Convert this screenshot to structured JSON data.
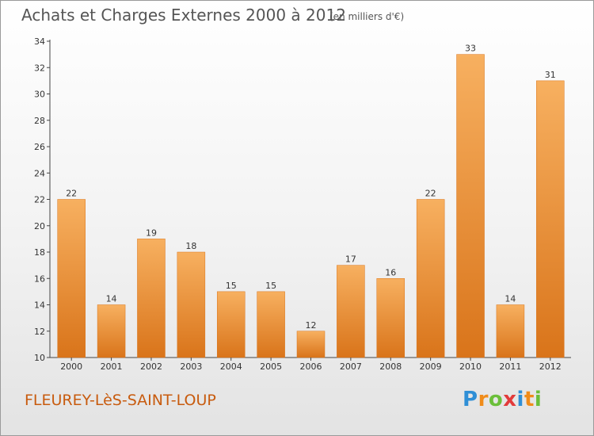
{
  "title": "Achats et Charges Externes 2000 à 2012",
  "subtitle": "(en milliers d'€)",
  "commune": "FLEUREY-LèS-SAINT-LOUP",
  "brand": {
    "letters": [
      "P",
      "r",
      "o",
      "x",
      "i",
      "t",
      "i"
    ],
    "colors": [
      "#2f8fd6",
      "#f08c1a",
      "#6bbf3a",
      "#e23b3b",
      "#2f8fd6",
      "#f08c1a",
      "#6bbf3a"
    ]
  },
  "colors": {
    "bar": "#f0932e",
    "bar_light": "#f7b060",
    "bar_dark": "#d9741a",
    "axis": "#444444",
    "grid": "#d0d0d0"
  },
  "chart_data": {
    "type": "bar",
    "categories": [
      "2000",
      "2001",
      "2002",
      "2003",
      "2004",
      "2005",
      "2006",
      "2007",
      "2008",
      "2009",
      "2010",
      "2011",
      "2012"
    ],
    "values": [
      22,
      14,
      19,
      18,
      15,
      15,
      12,
      17,
      16,
      22,
      33,
      14,
      31
    ],
    "title": "Achats et Charges Externes 2000 à 2012",
    "xlabel": "",
    "ylabel": "",
    "ylim": [
      10,
      34
    ],
    "yticks": [
      10,
      12,
      14,
      16,
      18,
      20,
      22,
      24,
      26,
      28,
      30,
      32,
      34
    ],
    "grid": false
  }
}
